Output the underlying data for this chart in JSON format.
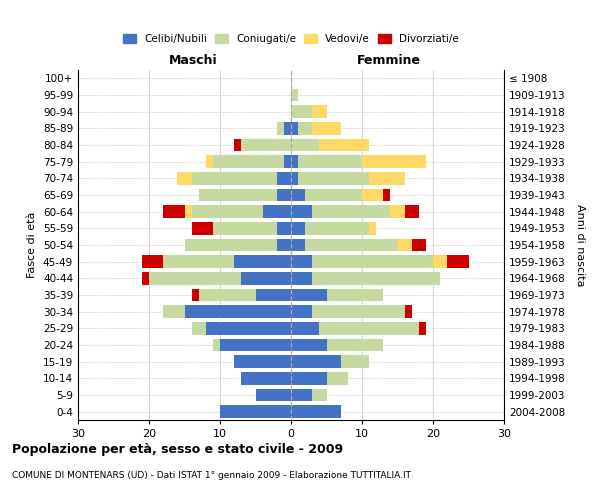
{
  "age_groups": [
    "100+",
    "95-99",
    "90-94",
    "85-89",
    "80-84",
    "75-79",
    "70-74",
    "65-69",
    "60-64",
    "55-59",
    "50-54",
    "45-49",
    "40-44",
    "35-39",
    "30-34",
    "25-29",
    "20-24",
    "15-19",
    "10-14",
    "5-9",
    "0-4"
  ],
  "birth_years": [
    "≤ 1908",
    "1909-1913",
    "1914-1918",
    "1919-1923",
    "1924-1928",
    "1929-1933",
    "1934-1938",
    "1939-1943",
    "1944-1948",
    "1949-1953",
    "1954-1958",
    "1959-1963",
    "1964-1968",
    "1969-1973",
    "1974-1978",
    "1979-1983",
    "1984-1988",
    "1989-1993",
    "1994-1998",
    "1999-2003",
    "2004-2008"
  ],
  "male": {
    "celibi": [
      0,
      0,
      0,
      1,
      0,
      1,
      2,
      2,
      4,
      2,
      2,
      8,
      7,
      5,
      15,
      12,
      10,
      8,
      7,
      5,
      10
    ],
    "coniugati": [
      0,
      0,
      0,
      1,
      7,
      10,
      12,
      11,
      10,
      9,
      13,
      10,
      13,
      8,
      3,
      2,
      1,
      0,
      0,
      0,
      0
    ],
    "vedovi": [
      0,
      0,
      0,
      0,
      0,
      1,
      2,
      0,
      1,
      0,
      0,
      0,
      0,
      0,
      0,
      0,
      0,
      0,
      0,
      0,
      0
    ],
    "divorziati": [
      0,
      0,
      0,
      0,
      1,
      0,
      0,
      0,
      3,
      3,
      0,
      3,
      1,
      1,
      0,
      0,
      0,
      0,
      0,
      0,
      0
    ]
  },
  "female": {
    "nubili": [
      0,
      0,
      0,
      1,
      0,
      1,
      1,
      2,
      3,
      2,
      2,
      3,
      3,
      5,
      3,
      4,
      5,
      7,
      5,
      3,
      7
    ],
    "coniugate": [
      0,
      1,
      3,
      2,
      4,
      9,
      10,
      8,
      11,
      9,
      13,
      17,
      18,
      8,
      13,
      14,
      8,
      4,
      3,
      2,
      0
    ],
    "vedove": [
      0,
      0,
      2,
      4,
      7,
      9,
      5,
      3,
      2,
      1,
      2,
      2,
      0,
      0,
      0,
      0,
      0,
      0,
      0,
      0,
      0
    ],
    "divorziate": [
      0,
      0,
      0,
      0,
      0,
      0,
      0,
      1,
      2,
      0,
      2,
      3,
      0,
      0,
      1,
      1,
      0,
      0,
      0,
      0,
      0
    ]
  },
  "colors": {
    "celibi": "#4472C4",
    "coniugati": "#c5d9a0",
    "vedovi": "#FFD966",
    "divorziati": "#CC0000"
  },
  "xlim": 30,
  "title": "Popolazione per età, sesso e stato civile - 2009",
  "subtitle": "COMUNE DI MONTENARS (UD) - Dati ISTAT 1° gennaio 2009 - Elaborazione TUTTITALIA.IT",
  "xlabel_left": "Maschi",
  "xlabel_right": "Femmine",
  "ylabel_left": "Fasce di età",
  "ylabel_right": "Anni di nascita"
}
